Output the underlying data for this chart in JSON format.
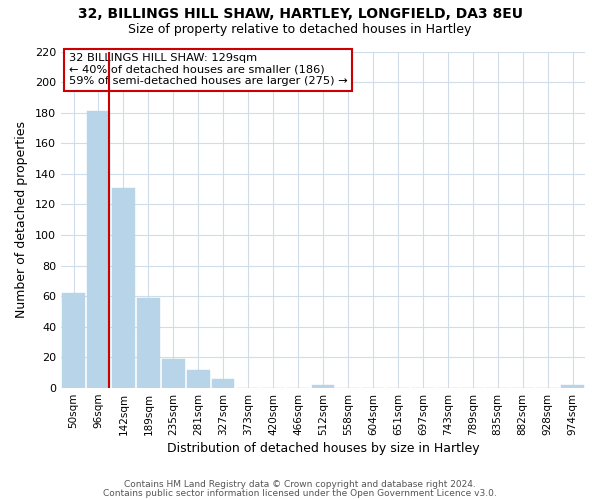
{
  "title": "32, BILLINGS HILL SHAW, HARTLEY, LONGFIELD, DA3 8EU",
  "subtitle": "Size of property relative to detached houses in Hartley",
  "bar_labels": [
    "50sqm",
    "96sqm",
    "142sqm",
    "189sqm",
    "235sqm",
    "281sqm",
    "327sqm",
    "373sqm",
    "420sqm",
    "466sqm",
    "512sqm",
    "558sqm",
    "604sqm",
    "651sqm",
    "697sqm",
    "743sqm",
    "789sqm",
    "835sqm",
    "882sqm",
    "928sqm",
    "974sqm"
  ],
  "bar_values": [
    62,
    181,
    131,
    59,
    19,
    12,
    6,
    0,
    0,
    0,
    2,
    0,
    0,
    0,
    0,
    0,
    0,
    0,
    0,
    0,
    2
  ],
  "bar_color": "#b8d4e8",
  "bar_edge_color": "#b8d4e8",
  "vline_x": 1.425,
  "vline_color": "#cc0000",
  "xlabel": "Distribution of detached houses by size in Hartley",
  "ylabel": "Number of detached properties",
  "ylim": [
    0,
    220
  ],
  "yticks": [
    0,
    20,
    40,
    60,
    80,
    100,
    120,
    140,
    160,
    180,
    200,
    220
  ],
  "annotation_title": "32 BILLINGS HILL SHAW: 129sqm",
  "annotation_line1": "← 40% of detached houses are smaller (186)",
  "annotation_line2": "59% of semi-detached houses are larger (275) →",
  "footnote1": "Contains HM Land Registry data © Crown copyright and database right 2024.",
  "footnote2": "Contains public sector information licensed under the Open Government Licence v3.0.",
  "grid_color": "#d0dce8",
  "title_fontsize": 10,
  "subtitle_fontsize": 9
}
